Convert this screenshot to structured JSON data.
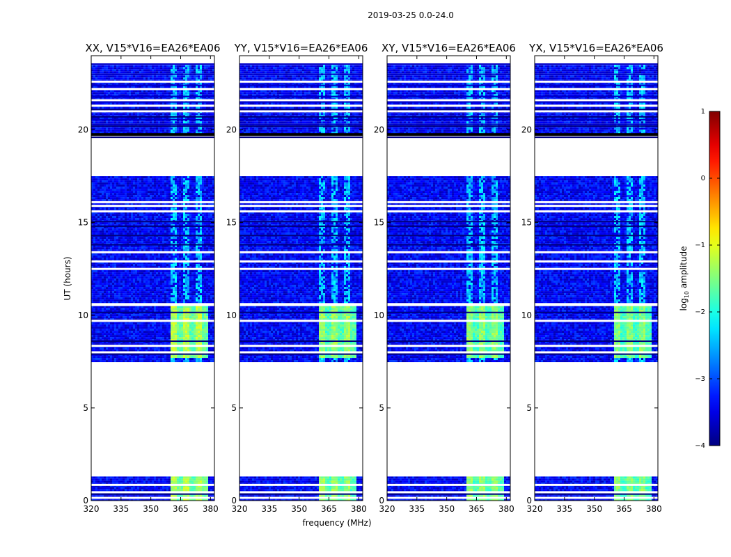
{
  "chart_data": {
    "type": "heatmap",
    "suptitle": "2019-03-25 0.0-24.0",
    "xlabel": "frequency (MHz)",
    "ylabel": "UT (hours)",
    "xlim": [
      320,
      382
    ],
    "ylim": [
      0,
      24
    ],
    "xticks": [
      320,
      335,
      350,
      365,
      380
    ],
    "yticks": [
      0,
      5,
      10,
      15,
      20
    ],
    "panels": [
      {
        "title": "XX, V15*V16=EA26*EA06",
        "rfi_band_mhz": [
          359,
          378
        ],
        "rfi_intensity": 1.0
      },
      {
        "title": "YY, V15*V16=EA26*EA06",
        "rfi_band_mhz": [
          359,
          378
        ],
        "rfi_intensity": 0.85
      },
      {
        "title": "XY, V15*V16=EA26*EA06",
        "rfi_band_mhz": [
          359,
          378
        ],
        "rfi_intensity": 0.8
      },
      {
        "title": "YX, V15*V16=EA26*EA06",
        "rfi_band_mhz": [
          359,
          378
        ],
        "rfi_intensity": 0.75
      }
    ],
    "data_ut_ranges_hours": [
      [
        0.0,
        1.3
      ],
      [
        7.5,
        17.5
      ],
      [
        19.8,
        23.5
      ]
    ],
    "background_log10_amplitude": -3.4,
    "rfi_log10_amplitude": [
      -2.2,
      -1.0
    ],
    "colorbar": {
      "label": "log10 amplitude",
      "label_main": "log",
      "label_sub": "10",
      "label_suffix": " amplitude",
      "range": [
        -4,
        1
      ],
      "ticks": [
        1,
        0,
        -1,
        -2,
        -3,
        -4
      ],
      "ticklabels": [
        "1",
        "0",
        "−1",
        "−2",
        "−3",
        "−4"
      ],
      "colormap": "jet"
    }
  }
}
